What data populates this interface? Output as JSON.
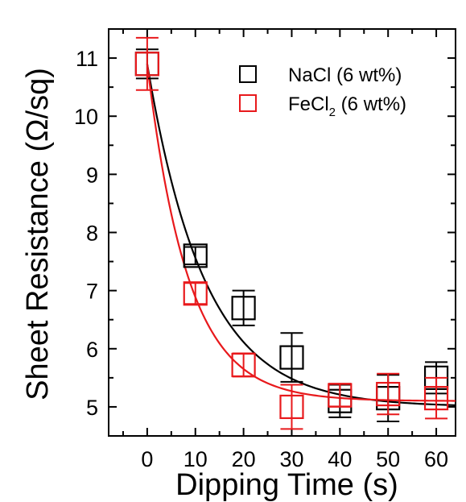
{
  "chart_data": {
    "type": "scatter",
    "xlabel": "Dipping Time (s)",
    "ylabel": "Sheet Resistance (Ω/sq)",
    "xlim": [
      -8,
      64
    ],
    "ylim": [
      4.5,
      11.5
    ],
    "xticks": [
      0,
      10,
      20,
      30,
      40,
      50,
      60
    ],
    "yticks": [
      5,
      6,
      7,
      8,
      9,
      10,
      11
    ],
    "legend_position": "top-right",
    "grid": false,
    "series": [
      {
        "name": "NaCl (6 wt%)",
        "color": "#000000",
        "marker": "open-square",
        "x": [
          0,
          10,
          20,
          30,
          40,
          50,
          60
        ],
        "y": [
          10.9,
          7.6,
          6.7,
          5.85,
          5.1,
          5.15,
          5.5
        ],
        "error": [
          0.25,
          0.15,
          0.3,
          0.42,
          0.28,
          0.4,
          0.27
        ],
        "fit": {
          "type": "exponential-decay",
          "y0": 5.0,
          "A": 5.9,
          "tau": 12
        }
      },
      {
        "name": "FeCl2 (6 wt%)",
        "label_prefix": "FeCl",
        "label_subscript": "2",
        "label_suffix": " (6 wt%)",
        "color": "#e8191c",
        "marker": "open-square",
        "x": [
          0,
          10,
          20,
          30,
          40,
          50,
          60
        ],
        "y": [
          10.9,
          6.95,
          5.72,
          5.0,
          5.2,
          5.22,
          5.15
        ],
        "error": [
          0.45,
          0.18,
          0.2,
          0.38,
          0.2,
          0.35,
          0.35
        ],
        "fit": {
          "type": "exponential-decay",
          "y0": 5.1,
          "A": 5.8,
          "tau": 8.5
        }
      }
    ]
  }
}
